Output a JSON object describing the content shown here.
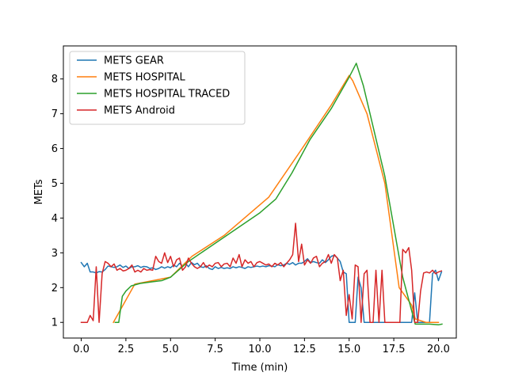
{
  "chart_data": {
    "type": "line",
    "xlabel": "Time (min)",
    "ylabel": "METs",
    "xlim": [
      -1.0,
      21.0
    ],
    "ylim": [
      0.55,
      8.95
    ],
    "x_ticks": [
      0.0,
      2.5,
      5.0,
      7.5,
      10.0,
      12.5,
      15.0,
      17.5,
      20.0
    ],
    "x_tick_labels": [
      "0.0",
      "2.5",
      "5.0",
      "7.5",
      "10.0",
      "12.5",
      "15.0",
      "17.5",
      "20.0"
    ],
    "y_ticks": [
      1,
      2,
      3,
      4,
      5,
      6,
      7,
      8
    ],
    "y_tick_labels": [
      "1",
      "2",
      "3",
      "4",
      "5",
      "6",
      "7",
      "8"
    ],
    "grid": false,
    "legend_position": "top-left",
    "series": [
      {
        "name": "METS GEAR",
        "color": "#1f77b4",
        "points": [
          [
            0.0,
            2.72
          ],
          [
            0.17,
            2.6
          ],
          [
            0.34,
            2.7
          ],
          [
            0.5,
            2.45
          ],
          [
            0.67,
            2.45
          ],
          [
            0.84,
            2.42
          ],
          [
            1.0,
            2.46
          ],
          [
            1.17,
            2.45
          ],
          [
            1.34,
            2.52
          ],
          [
            1.5,
            2.62
          ],
          [
            1.67,
            2.6
          ],
          [
            1.84,
            2.58
          ],
          [
            2.0,
            2.6
          ],
          [
            2.17,
            2.65
          ],
          [
            2.34,
            2.58
          ],
          [
            2.5,
            2.62
          ],
          [
            2.67,
            2.55
          ],
          [
            2.84,
            2.6
          ],
          [
            3.0,
            2.6
          ],
          [
            3.17,
            2.63
          ],
          [
            3.34,
            2.58
          ],
          [
            3.5,
            2.61
          ],
          [
            3.67,
            2.6
          ],
          [
            3.84,
            2.55
          ],
          [
            4.0,
            2.57
          ],
          [
            4.17,
            2.52
          ],
          [
            4.34,
            2.55
          ],
          [
            4.5,
            2.6
          ],
          [
            4.67,
            2.56
          ],
          [
            4.84,
            2.6
          ],
          [
            5.0,
            2.57
          ],
          [
            5.17,
            2.65
          ],
          [
            5.34,
            2.6
          ],
          [
            5.5,
            2.7
          ],
          [
            5.67,
            2.62
          ],
          [
            5.84,
            2.7
          ],
          [
            6.0,
            2.6
          ],
          [
            6.17,
            2.72
          ],
          [
            6.34,
            2.66
          ],
          [
            6.5,
            2.7
          ],
          [
            6.67,
            2.6
          ],
          [
            6.84,
            2.58
          ],
          [
            7.0,
            2.63
          ],
          [
            7.17,
            2.55
          ],
          [
            7.34,
            2.52
          ],
          [
            7.5,
            2.6
          ],
          [
            7.67,
            2.55
          ],
          [
            7.84,
            2.58
          ],
          [
            8.0,
            2.55
          ],
          [
            8.17,
            2.57
          ],
          [
            8.34,
            2.55
          ],
          [
            8.5,
            2.6
          ],
          [
            8.67,
            2.57
          ],
          [
            8.84,
            2.6
          ],
          [
            9.0,
            2.58
          ],
          [
            9.17,
            2.55
          ],
          [
            9.34,
            2.6
          ],
          [
            9.5,
            2.58
          ],
          [
            9.67,
            2.6
          ],
          [
            9.84,
            2.62
          ],
          [
            10.0,
            2.6
          ],
          [
            10.17,
            2.62
          ],
          [
            10.34,
            2.6
          ],
          [
            10.5,
            2.63
          ],
          [
            10.67,
            2.62
          ],
          [
            10.84,
            2.6
          ],
          [
            11.0,
            2.66
          ],
          [
            11.17,
            2.63
          ],
          [
            11.34,
            2.65
          ],
          [
            11.5,
            2.7
          ],
          [
            11.67,
            2.67
          ],
          [
            11.84,
            2.72
          ],
          [
            12.0,
            2.65
          ],
          [
            12.17,
            2.7
          ],
          [
            12.34,
            2.7
          ],
          [
            12.5,
            2.75
          ],
          [
            12.67,
            2.83
          ],
          [
            12.84,
            2.72
          ],
          [
            13.0,
            2.75
          ],
          [
            13.17,
            2.72
          ],
          [
            13.34,
            2.7
          ],
          [
            13.5,
            2.8
          ],
          [
            13.67,
            2.72
          ],
          [
            13.84,
            2.8
          ],
          [
            14.0,
            2.9
          ],
          [
            14.17,
            2.93
          ],
          [
            14.34,
            2.85
          ],
          [
            14.5,
            2.75
          ],
          [
            14.67,
            2.45
          ],
          [
            14.84,
            2.4
          ],
          [
            15.0,
            1.0
          ],
          [
            15.17,
            1.0
          ],
          [
            15.34,
            1.0
          ],
          [
            15.5,
            2.3
          ],
          [
            15.67,
            2.0
          ],
          [
            15.84,
            1.0
          ],
          [
            16.0,
            1.0
          ],
          [
            16.17,
            1.0
          ],
          [
            16.34,
            1.0
          ],
          [
            16.5,
            1.0
          ],
          [
            16.67,
            1.0
          ],
          [
            16.84,
            1.0
          ],
          [
            17.0,
            1.0
          ],
          [
            17.17,
            1.0
          ],
          [
            17.34,
            1.0
          ],
          [
            17.5,
            1.0
          ],
          [
            17.67,
            1.0
          ],
          [
            17.84,
            1.0
          ],
          [
            18.0,
            1.0
          ],
          [
            18.17,
            1.0
          ],
          [
            18.34,
            1.0
          ],
          [
            18.5,
            1.0
          ],
          [
            18.67,
            1.85
          ],
          [
            18.84,
            1.0
          ],
          [
            19.0,
            1.0
          ],
          [
            19.17,
            1.0
          ],
          [
            19.34,
            1.0
          ],
          [
            19.5,
            1.0
          ],
          [
            19.67,
            2.4
          ],
          [
            19.84,
            2.5
          ],
          [
            20.0,
            2.2
          ],
          [
            20.17,
            2.45
          ]
        ]
      },
      {
        "name": "METS HOSPITAL",
        "color": "#ff7f0e",
        "points": [
          [
            1.8,
            1.0
          ],
          [
            3.0,
            2.1
          ],
          [
            5.0,
            2.3
          ],
          [
            6.2,
            2.9
          ],
          [
            8.0,
            3.5
          ],
          [
            10.5,
            4.6
          ],
          [
            12.5,
            6.1
          ],
          [
            14.0,
            7.25
          ],
          [
            15.0,
            8.1
          ],
          [
            15.2,
            7.95
          ],
          [
            16.0,
            7.0
          ],
          [
            17.0,
            5.0
          ],
          [
            17.8,
            2.0
          ],
          [
            18.5,
            1.5
          ],
          [
            18.7,
            1.1
          ],
          [
            19.3,
            1.0
          ],
          [
            20.0,
            1.0
          ]
        ]
      },
      {
        "name": "METS HOSPITAL TRACED",
        "color": "#2ca02c",
        "points": [
          [
            1.9,
            1.0
          ],
          [
            2.1,
            1.0
          ],
          [
            2.3,
            1.75
          ],
          [
            2.5,
            1.9
          ],
          [
            2.8,
            2.05
          ],
          [
            3.3,
            2.12
          ],
          [
            4.0,
            2.17
          ],
          [
            4.5,
            2.2
          ],
          [
            5.0,
            2.3
          ],
          [
            6.0,
            2.75
          ],
          [
            7.0,
            3.1
          ],
          [
            8.0,
            3.45
          ],
          [
            9.0,
            3.8
          ],
          [
            10.0,
            4.15
          ],
          [
            10.9,
            4.55
          ],
          [
            11.8,
            5.3
          ],
          [
            12.8,
            6.25
          ],
          [
            14.0,
            7.15
          ],
          [
            15.0,
            8.05
          ],
          [
            15.4,
            8.45
          ],
          [
            15.8,
            7.8
          ],
          [
            17.0,
            5.2
          ],
          [
            18.0,
            2.3
          ],
          [
            18.7,
            0.95
          ],
          [
            19.0,
            0.95
          ],
          [
            19.5,
            0.95
          ],
          [
            20.0,
            0.93
          ],
          [
            20.2,
            0.95
          ]
        ]
      },
      {
        "name": "METS Android",
        "color": "#d62728",
        "points": [
          [
            0.0,
            1.0
          ],
          [
            0.34,
            1.0
          ],
          [
            0.5,
            1.2
          ],
          [
            0.67,
            1.05
          ],
          [
            0.84,
            2.6
          ],
          [
            1.0,
            1.0
          ],
          [
            1.17,
            2.4
          ],
          [
            1.34,
            2.75
          ],
          [
            1.5,
            2.7
          ],
          [
            1.67,
            2.6
          ],
          [
            1.84,
            2.68
          ],
          [
            2.0,
            2.5
          ],
          [
            2.17,
            2.55
          ],
          [
            2.34,
            2.48
          ],
          [
            2.5,
            2.5
          ],
          [
            2.67,
            2.55
          ],
          [
            2.84,
            2.65
          ],
          [
            3.0,
            2.45
          ],
          [
            3.17,
            2.5
          ],
          [
            3.34,
            2.45
          ],
          [
            3.5,
            2.55
          ],
          [
            3.67,
            2.5
          ],
          [
            3.84,
            2.52
          ],
          [
            4.0,
            2.5
          ],
          [
            4.17,
            2.9
          ],
          [
            4.34,
            2.75
          ],
          [
            4.5,
            2.7
          ],
          [
            4.67,
            3.0
          ],
          [
            4.84,
            2.72
          ],
          [
            5.0,
            2.9
          ],
          [
            5.17,
            2.6
          ],
          [
            5.34,
            2.8
          ],
          [
            5.5,
            2.85
          ],
          [
            5.67,
            2.5
          ],
          [
            5.84,
            2.6
          ],
          [
            6.0,
            2.85
          ],
          [
            6.17,
            2.7
          ],
          [
            6.34,
            2.6
          ],
          [
            6.5,
            2.55
          ],
          [
            6.67,
            2.6
          ],
          [
            6.84,
            2.72
          ],
          [
            7.0,
            2.58
          ],
          [
            7.17,
            2.65
          ],
          [
            7.34,
            2.6
          ],
          [
            7.5,
            2.7
          ],
          [
            7.67,
            2.72
          ],
          [
            7.84,
            2.6
          ],
          [
            8.0,
            2.68
          ],
          [
            8.17,
            2.7
          ],
          [
            8.34,
            2.6
          ],
          [
            8.5,
            2.85
          ],
          [
            8.67,
            2.7
          ],
          [
            8.84,
            2.95
          ],
          [
            9.0,
            2.6
          ],
          [
            9.17,
            2.8
          ],
          [
            9.34,
            2.7
          ],
          [
            9.5,
            2.75
          ],
          [
            9.67,
            2.6
          ],
          [
            9.84,
            2.72
          ],
          [
            10.0,
            2.75
          ],
          [
            10.17,
            2.7
          ],
          [
            10.34,
            2.65
          ],
          [
            10.5,
            2.68
          ],
          [
            10.67,
            2.6
          ],
          [
            10.84,
            2.7
          ],
          [
            11.0,
            2.65
          ],
          [
            11.17,
            2.72
          ],
          [
            11.34,
            2.6
          ],
          [
            11.5,
            2.7
          ],
          [
            11.67,
            2.8
          ],
          [
            11.84,
            2.95
          ],
          [
            12.0,
            3.85
          ],
          [
            12.17,
            2.75
          ],
          [
            12.34,
            3.25
          ],
          [
            12.5,
            2.65
          ],
          [
            12.67,
            2.8
          ],
          [
            12.84,
            2.7
          ],
          [
            13.0,
            2.85
          ],
          [
            13.17,
            2.9
          ],
          [
            13.34,
            2.6
          ],
          [
            13.5,
            2.7
          ],
          [
            13.67,
            2.75
          ],
          [
            13.84,
            2.95
          ],
          [
            14.0,
            2.7
          ],
          [
            14.17,
            2.95
          ],
          [
            14.34,
            2.85
          ],
          [
            14.5,
            2.2
          ],
          [
            14.67,
            2.5
          ],
          [
            14.84,
            1.2
          ],
          [
            15.0,
            1.8
          ],
          [
            15.17,
            1.1
          ],
          [
            15.34,
            2.65
          ],
          [
            15.5,
            2.6
          ],
          [
            15.67,
            1.0
          ],
          [
            15.84,
            2.4
          ],
          [
            16.0,
            2.5
          ],
          [
            16.17,
            1.0
          ],
          [
            16.34,
            1.0
          ],
          [
            16.5,
            2.5
          ],
          [
            16.67,
            1.0
          ],
          [
            16.84,
            2.5
          ],
          [
            17.0,
            1.0
          ],
          [
            17.17,
            1.0
          ],
          [
            17.34,
            1.0
          ],
          [
            17.5,
            1.0
          ],
          [
            17.67,
            1.0
          ],
          [
            17.84,
            1.0
          ],
          [
            18.0,
            3.1
          ],
          [
            18.17,
            3.0
          ],
          [
            18.34,
            3.15
          ],
          [
            18.5,
            2.5
          ],
          [
            18.67,
            1.0
          ],
          [
            18.84,
            1.0
          ],
          [
            19.0,
            1.9
          ],
          [
            19.17,
            2.42
          ],
          [
            19.34,
            2.45
          ],
          [
            19.5,
            2.42
          ],
          [
            19.67,
            2.5
          ],
          [
            19.84,
            2.4
          ],
          [
            20.0,
            2.45
          ],
          [
            20.17,
            2.48
          ]
        ]
      }
    ]
  }
}
